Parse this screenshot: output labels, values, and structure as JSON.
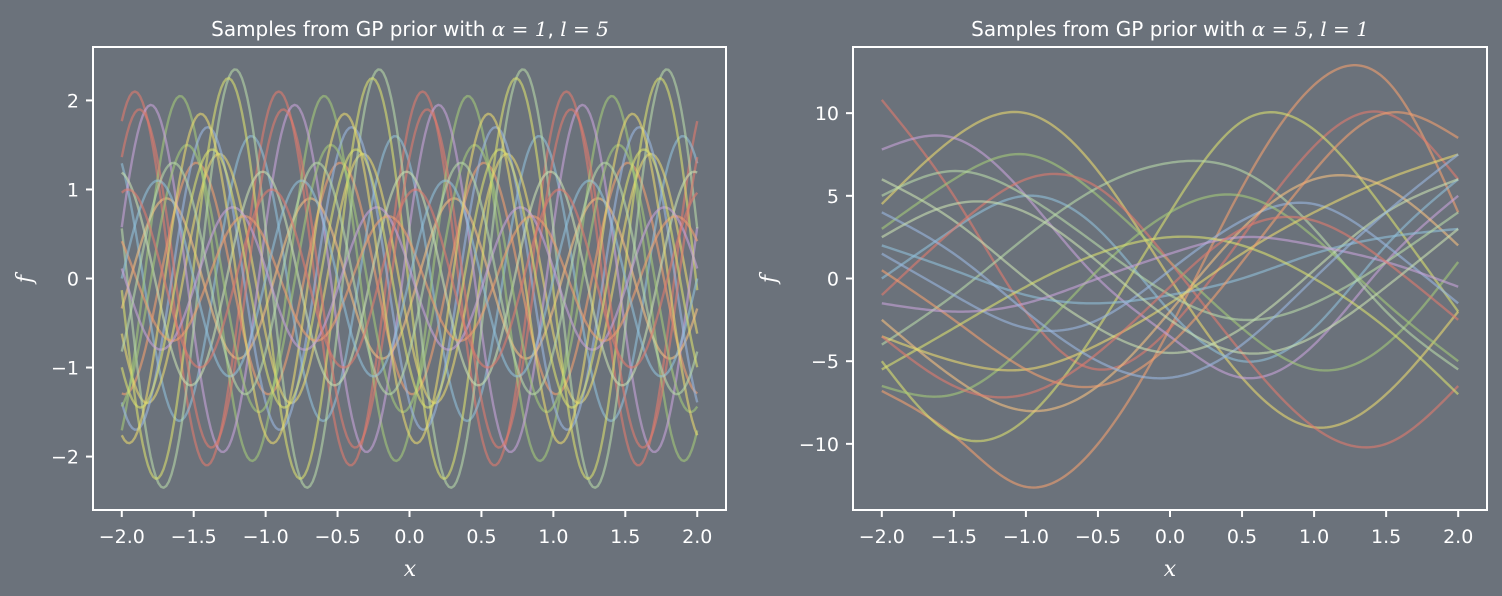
{
  "chart_data": [
    {
      "type": "line",
      "title": {
        "prefix": "Samples from GP prior with ",
        "param1_symbol": "α",
        "param1_eq": " = ",
        "param1_value": "1",
        "separator": ", ",
        "param2_symbol": "l",
        "param2_eq": " = ",
        "param2_value": "5"
      },
      "xlabel": "x",
      "ylabel": "f",
      "xlim": [
        -2.2,
        2.2
      ],
      "ylim": [
        -2.6,
        2.6
      ],
      "xticks": [
        -2.0,
        -1.5,
        -1.0,
        -0.5,
        0.0,
        0.5,
        1.0,
        1.5,
        2.0
      ],
      "xtick_labels": [
        "−2.0",
        "−1.5",
        "−1.0",
        "−0.5",
        "0.0",
        "0.5",
        "1.0",
        "1.5",
        "2.0"
      ],
      "yticks": [
        -2,
        -1,
        0,
        1,
        2
      ],
      "ytick_labels": [
        "−2",
        "−1",
        "0",
        "1",
        "2"
      ],
      "grid": false,
      "line_alpha": 0.6,
      "period": 1.0,
      "series": [
        {
          "color": "#e07b6e",
          "x": [
            -2.0,
            -1.5,
            -1.0,
            -0.5,
            0.0,
            0.5,
            1.0,
            1.5,
            2.0
          ],
          "y": [
            1.6,
            1.6,
            1.6,
            1.6,
            1.6,
            1.6,
            1.6,
            1.6,
            1.6
          ],
          "amplitude": 2.1,
          "phase": 1.0
        },
        {
          "color": "#f0a070",
          "x": [
            -2.0,
            -1.0,
            0.0,
            1.0,
            2.0
          ],
          "y": [
            1.2,
            1.2,
            1.2,
            1.2,
            1.2
          ],
          "amplitude": 1.3,
          "phase": 4.6
        },
        {
          "color": "#8fc0d8",
          "x": [
            -2.0,
            -1.0,
            0.0,
            1.0,
            2.0
          ],
          "y": [
            1.0,
            1.0,
            1.0,
            1.0,
            1.0
          ],
          "amplitude": 1.6,
          "phase": 2.2
        },
        {
          "color": "#a3c97a",
          "x": [
            -2.0,
            -1.0,
            0.0,
            1.0,
            2.0
          ],
          "y": [
            -0.4,
            -0.4,
            -0.4,
            -0.4,
            -0.4
          ],
          "amplitude": 2.05,
          "phase": 5.3
        },
        {
          "color": "#e8d870",
          "x": [
            -2.0,
            -1.0,
            0.0,
            1.0,
            2.0
          ],
          "y": [
            0.9,
            0.9,
            0.9,
            0.9,
            0.9
          ],
          "amplitude": 1.4,
          "phase": 3.6
        },
        {
          "color": "#c6a3d8",
          "x": [
            -2.0,
            -1.0,
            0.0,
            1.0,
            2.0
          ],
          "y": [
            -1.1,
            -1.1,
            -1.1,
            -1.1,
            -1.1
          ],
          "amplitude": 1.95,
          "phase": 0.3
        },
        {
          "color": "#b8d8a8",
          "x": [
            -2.0,
            -1.0,
            0.0,
            1.0,
            2.0
          ],
          "y": [
            0.3,
            0.3,
            0.3,
            0.3,
            0.3
          ],
          "amplitude": 2.35,
          "phase": 2.9
        },
        {
          "color": "#f4c080",
          "x": [
            -2.0,
            -1.0,
            0.0,
            1.0,
            2.0
          ],
          "y": [
            -0.6,
            -0.6,
            -0.6,
            -0.6,
            -0.6
          ],
          "amplitude": 0.9,
          "phase": 5.9
        },
        {
          "color": "#9ab8e0",
          "x": [
            -2.0,
            -1.0,
            0.0,
            1.0,
            2.0
          ],
          "y": [
            -1.2,
            -1.2,
            -1.2,
            -1.2,
            -1.2
          ],
          "amplitude": 1.7,
          "phase": 4.1
        },
        {
          "color": "#d8e070",
          "x": [
            -2.0,
            -1.0,
            0.0,
            1.0,
            2.0
          ],
          "y": [
            -0.9,
            -0.9,
            -0.9,
            -0.9,
            -0.9
          ],
          "amplitude": 2.25,
          "phase": 3.2
        },
        {
          "color": "#e07b6e",
          "x": [
            -2.0,
            -1.0,
            0.0,
            1.0,
            2.0
          ],
          "y": [
            -1.8,
            -1.8,
            -1.8,
            -1.8,
            -1.8
          ],
          "amplitude": 1.9,
          "phase": 0.8
        },
        {
          "color": "#c8e0b0",
          "x": [
            -2.0,
            -1.0,
            0.0,
            1.0,
            2.0
          ],
          "y": [
            0.6,
            0.6,
            0.6,
            0.6,
            0.6
          ],
          "amplitude": 1.2,
          "phase": 1.7
        },
        {
          "color": "#a3c97a",
          "x": [
            -2.0,
            -1.0,
            0.0,
            1.0,
            2.0
          ],
          "y": [
            1.4,
            1.4,
            1.4,
            1.4,
            1.4
          ],
          "amplitude": 1.5,
          "phase": 5.0
        },
        {
          "color": "#f0a070",
          "x": [
            -2.0,
            -1.0,
            0.0,
            1.0,
            2.0
          ],
          "y": [
            -0.2,
            -0.2,
            -0.2,
            -0.2,
            -0.2
          ],
          "amplitude": 0.7,
          "phase": 2.5
        },
        {
          "color": "#8fc0d8",
          "x": [
            -2.0,
            -1.0,
            0.0,
            1.0,
            2.0
          ],
          "y": [
            -0.5,
            -0.5,
            -0.5,
            -0.5,
            -0.5
          ],
          "amplitude": 1.1,
          "phase": 0.0
        },
        {
          "color": "#e8d870",
          "x": [
            -2.0,
            -1.0,
            0.0,
            1.0,
            2.0
          ],
          "y": [
            0.1,
            0.1,
            0.1,
            0.1,
            0.1
          ],
          "amplitude": 1.85,
          "phase": 4.4
        },
        {
          "color": "#c6a3d8",
          "x": [
            -2.0,
            -1.0,
            0.0,
            1.0,
            2.0
          ],
          "y": [
            0.4,
            0.4,
            0.4,
            0.4,
            0.4
          ],
          "amplitude": 0.8,
          "phase": 3.0
        },
        {
          "color": "#b8d8a8",
          "x": [
            -2.0,
            -1.0,
            0.0,
            1.0,
            2.0
          ],
          "y": [
            -1.0,
            -1.0,
            -1.0,
            -1.0,
            -1.0
          ],
          "amplitude": 1.3,
          "phase": 5.6
        },
        {
          "color": "#e07b6e",
          "x": [
            -2.0,
            -1.0,
            0.0,
            1.0,
            2.0
          ],
          "y": [
            0.2,
            0.2,
            0.2,
            0.2,
            0.2
          ],
          "amplitude": 1.0,
          "phase": 1.3
        },
        {
          "color": "#d8e070",
          "x": [
            -2.0,
            -1.0,
            0.0,
            1.0,
            2.0
          ],
          "y": [
            -0.3,
            -0.3,
            -0.3,
            -0.3,
            -0.3
          ],
          "amplitude": 1.45,
          "phase": 3.9
        }
      ]
    },
    {
      "type": "line",
      "title": {
        "prefix": "Samples from GP prior with ",
        "param1_symbol": "α",
        "param1_eq": " = ",
        "param1_value": "5",
        "separator": ", ",
        "param2_symbol": "l",
        "param2_eq": " = ",
        "param2_value": "1"
      },
      "xlabel": "x",
      "ylabel": "f",
      "xlim": [
        -2.2,
        2.2
      ],
      "ylim": [
        -14,
        14
      ],
      "xticks": [
        -2.0,
        -1.5,
        -1.0,
        -0.5,
        0.0,
        0.5,
        1.0,
        1.5,
        2.0
      ],
      "xtick_labels": [
        "−2.0",
        "−1.5",
        "−1.0",
        "−0.5",
        "0.0",
        "0.5",
        "1.0",
        "1.5",
        "2.0"
      ],
      "yticks": [
        -10,
        -5,
        0,
        5,
        10
      ],
      "ytick_labels": [
        "−10",
        "−5",
        "0",
        "5",
        "10"
      ],
      "grid": false,
      "line_alpha": 0.6,
      "series": [
        {
          "color": "#f0a070",
          "x": [
            -2.0,
            -1.5,
            -1.0,
            -0.5,
            0.0,
            0.5,
            1.0,
            1.5,
            2.0
          ],
          "y": [
            -6.8,
            -9.5,
            -12.6,
            -10.0,
            -3.0,
            5.5,
            11.7,
            12.0,
            4.0
          ]
        },
        {
          "color": "#e07b6e",
          "x": [
            -2.0,
            -1.5,
            -1.0,
            -0.5,
            0.0,
            0.5,
            1.0,
            1.5,
            2.0
          ],
          "y": [
            10.8,
            5.0,
            -2.0,
            -5.5,
            -3.0,
            2.5,
            8.0,
            10.0,
            6.0
          ]
        },
        {
          "color": "#d8e070",
          "x": [
            -2.0,
            -1.5,
            -1.0,
            -0.5,
            0.0,
            0.5,
            1.0,
            1.5,
            2.0
          ],
          "y": [
            -5.0,
            -9.5,
            -8.5,
            -3.0,
            4.0,
            9.5,
            9.0,
            4.0,
            -2.0
          ]
        },
        {
          "color": "#e8d870",
          "x": [
            -2.0,
            -1.5,
            -1.0,
            -0.5,
            0.0,
            0.5,
            1.0,
            1.5,
            2.0
          ],
          "y": [
            4.5,
            8.5,
            10.0,
            6.5,
            0.0,
            -6.0,
            -9.0,
            -7.0,
            -2.0
          ]
        },
        {
          "color": "#8fc0d8",
          "x": [
            -2.0,
            -1.5,
            -1.0,
            -0.5,
            0.0,
            0.5,
            1.0,
            1.5,
            2.0
          ],
          "y": [
            0.0,
            3.0,
            5.0,
            3.0,
            -2.0,
            -5.0,
            -3.0,
            2.0,
            6.0
          ]
        },
        {
          "color": "#c6a3d8",
          "x": [
            -2.0,
            -1.5,
            -1.0,
            -0.5,
            0.0,
            0.5,
            1.0,
            1.5,
            2.0
          ],
          "y": [
            7.8,
            8.5,
            5.0,
            0.0,
            -3.5,
            -6.0,
            -4.0,
            1.0,
            5.0
          ]
        },
        {
          "color": "#a3c97a",
          "x": [
            -2.0,
            -1.5,
            -1.0,
            -0.5,
            0.0,
            0.5,
            1.0,
            1.5,
            2.0
          ],
          "y": [
            3.0,
            6.0,
            7.5,
            5.0,
            1.0,
            -3.0,
            -5.5,
            -4.0,
            1.0
          ]
        },
        {
          "color": "#b8d8a8",
          "x": [
            -2.0,
            -1.5,
            -1.0,
            -0.5,
            0.0,
            0.5,
            1.0,
            1.5,
            2.0
          ],
          "y": [
            -4.0,
            -1.0,
            2.5,
            5.5,
            7.0,
            6.5,
            3.0,
            -2.0,
            -5.5
          ]
        },
        {
          "color": "#9ab8e0",
          "x": [
            -2.0,
            -1.5,
            -1.0,
            -0.5,
            0.0,
            0.5,
            1.0,
            1.5,
            2.0
          ],
          "y": [
            1.5,
            -1.0,
            -3.0,
            -2.5,
            0.5,
            3.5,
            4.5,
            2.0,
            -1.5
          ]
        },
        {
          "color": "#f4c080",
          "x": [
            -2.0,
            -1.5,
            -1.0,
            -0.5,
            0.0,
            0.5,
            1.0,
            1.5,
            2.0
          ],
          "y": [
            -2.5,
            -6.0,
            -8.0,
            -6.5,
            -2.0,
            3.0,
            6.0,
            5.5,
            2.0
          ]
        },
        {
          "color": "#c8e0b0",
          "x": [
            -2.0,
            -1.5,
            -1.0,
            -0.5,
            0.0,
            0.5,
            1.0,
            1.5,
            2.0
          ],
          "y": [
            6.0,
            3.5,
            0.0,
            -3.0,
            -4.5,
            -3.0,
            0.5,
            4.0,
            6.0
          ]
        },
        {
          "color": "#e07b6e",
          "x": [
            -2.0,
            -1.5,
            -1.0,
            -0.5,
            0.0,
            0.5,
            1.0,
            1.5,
            2.0
          ],
          "y": [
            -1.0,
            3.0,
            6.0,
            5.5,
            1.0,
            -4.5,
            -9.0,
            -10.0,
            -6.5
          ]
        },
        {
          "color": "#a3c97a",
          "x": [
            -2.0,
            -1.5,
            -1.0,
            -0.5,
            0.0,
            0.5,
            1.0,
            1.5,
            2.0
          ],
          "y": [
            -6.5,
            -7.0,
            -4.0,
            0.5,
            4.0,
            5.0,
            2.5,
            -1.5,
            -5.0
          ]
        },
        {
          "color": "#8fc0d8",
          "x": [
            -2.0,
            -1.5,
            -1.0,
            -0.5,
            0.0,
            0.5,
            1.0,
            1.5,
            2.0
          ],
          "y": [
            2.0,
            0.5,
            -1.0,
            -1.5,
            -1.0,
            0.0,
            1.5,
            2.5,
            3.0
          ]
        },
        {
          "color": "#e8d870",
          "x": [
            -2.0,
            -1.5,
            -1.0,
            -0.5,
            0.0,
            0.5,
            1.0,
            1.5,
            2.0
          ],
          "y": [
            -3.5,
            -5.0,
            -5.5,
            -4.0,
            -1.5,
            1.5,
            4.0,
            6.0,
            7.5
          ]
        },
        {
          "color": "#b8d8a8",
          "x": [
            -2.0,
            -1.5,
            -1.0,
            -0.5,
            0.0,
            0.5,
            1.0,
            1.5,
            2.0
          ],
          "y": [
            5.0,
            6.5,
            5.0,
            2.0,
            -1.0,
            -2.5,
            -1.5,
            1.0,
            4.0
          ]
        },
        {
          "color": "#f0a070",
          "x": [
            -2.0,
            -1.5,
            -1.0,
            -0.5,
            0.0,
            0.5,
            1.0,
            1.5,
            2.0
          ],
          "y": [
            0.5,
            -2.5,
            -5.5,
            -6.5,
            -4.0,
            1.0,
            6.5,
            10.0,
            8.5
          ]
        },
        {
          "color": "#c6a3d8",
          "x": [
            -2.0,
            -1.5,
            -1.0,
            -0.5,
            0.0,
            0.5,
            1.0,
            1.5,
            2.0
          ],
          "y": [
            -1.5,
            -2.0,
            -1.5,
            0.0,
            1.5,
            2.5,
            2.0,
            1.0,
            -0.5
          ]
        },
        {
          "color": "#d8e070",
          "x": [
            -2.0,
            -1.5,
            -1.0,
            -0.5,
            0.0,
            0.5,
            1.0,
            1.5,
            2.0
          ],
          "y": [
            -5.5,
            -3.0,
            -0.5,
            1.5,
            2.5,
            2.0,
            0.0,
            -3.0,
            -7.0
          ]
        },
        {
          "color": "#9ab8e0",
          "x": [
            -2.0,
            -1.5,
            -1.0,
            -0.5,
            0.0,
            0.5,
            1.0,
            1.5,
            2.0
          ],
          "y": [
            4.0,
            1.5,
            -2.0,
            -5.0,
            -6.0,
            -4.0,
            0.0,
            4.0,
            7.5
          ]
        },
        {
          "color": "#e07b6e",
          "x": [
            -2.0,
            -1.5,
            -1.0,
            -0.5,
            0.0,
            0.5,
            1.0,
            1.5,
            2.0
          ],
          "y": [
            -3.5,
            -6.5,
            -7.0,
            -4.5,
            -0.5,
            3.0,
            3.5,
            1.0,
            -2.5
          ]
        },
        {
          "color": "#c8e0b0",
          "x": [
            -2.0,
            -1.5,
            -1.0,
            -0.5,
            0.0,
            0.5,
            1.0,
            1.5,
            2.0
          ],
          "y": [
            2.5,
            4.5,
            4.0,
            1.0,
            -2.5,
            -4.5,
            -3.5,
            -0.5,
            3.0
          ]
        }
      ]
    }
  ]
}
